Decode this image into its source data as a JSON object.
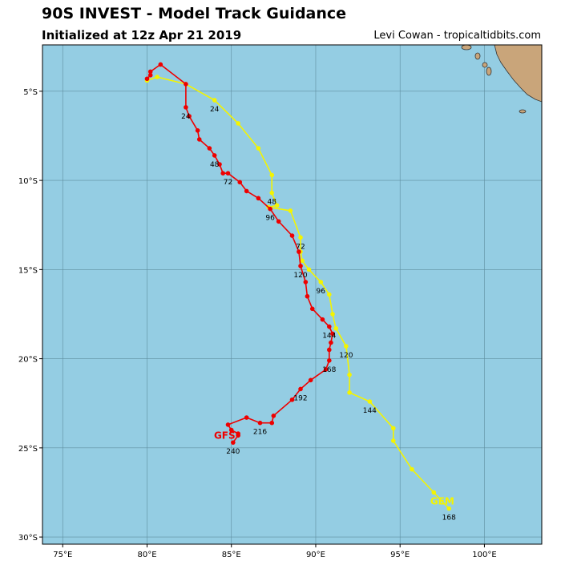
{
  "header": {
    "title": "90S INVEST - Model Track Guidance",
    "subtitle": "Initialized at 12z Apr 21 2019",
    "credit": "Levi Cowan - tropicaltidbits.com"
  },
  "colors": {
    "ocean": "#94cde3",
    "land": "#c9a57a",
    "grid": "#5f8ea0",
    "gfs": "#ee0000",
    "gem": "#f4f400"
  },
  "chart_data": {
    "type": "map-tracks",
    "lon_range": [
      73.8,
      103.4
    ],
    "lat_range": [
      -30.4,
      -2.4
    ],
    "x_ticks": [
      {
        "value": 75,
        "label": "75°E"
      },
      {
        "value": 80,
        "label": "80°E"
      },
      {
        "value": 85,
        "label": "85°E"
      },
      {
        "value": 90,
        "label": "90°E"
      },
      {
        "value": 95,
        "label": "95°E"
      },
      {
        "value": 100,
        "label": "100°E"
      }
    ],
    "y_ticks": [
      {
        "value": -5,
        "label": "5°S"
      },
      {
        "value": -10,
        "label": "10°S"
      },
      {
        "value": -15,
        "label": "15°S"
      },
      {
        "value": -20,
        "label": "20°S"
      },
      {
        "value": -25,
        "label": "25°S"
      },
      {
        "value": -30,
        "label": "30°S"
      }
    ],
    "grid": true,
    "series": [
      {
        "name": "GEM",
        "color": "#f4f400",
        "points": [
          [
            80.0,
            -4.4
          ],
          [
            80.6,
            -4.2
          ],
          [
            82.3,
            -4.6
          ],
          [
            84.0,
            -5.5
          ],
          [
            85.4,
            -6.8
          ],
          [
            86.6,
            -8.2
          ],
          [
            87.4,
            -9.7
          ],
          [
            87.4,
            -10.7
          ],
          [
            87.7,
            -11.4
          ],
          [
            87.2,
            -11.5
          ],
          [
            88.5,
            -11.7
          ],
          [
            89.1,
            -13.2
          ],
          [
            89.1,
            -14.0
          ],
          [
            89.2,
            -14.5
          ],
          [
            89.6,
            -15.0
          ],
          [
            90.3,
            -15.7
          ],
          [
            90.8,
            -16.4
          ],
          [
            91.0,
            -17.5
          ],
          [
            91.2,
            -18.3
          ],
          [
            91.8,
            -19.3
          ],
          [
            92.0,
            -20.9
          ],
          [
            92.0,
            -21.9
          ],
          [
            93.2,
            -22.4
          ],
          [
            94.6,
            -23.9
          ],
          [
            94.6,
            -24.6
          ],
          [
            95.7,
            -26.2
          ],
          [
            97.0,
            -27.5
          ],
          [
            97.9,
            -28.4
          ]
        ],
        "labels": [
          {
            "text": "24",
            "lon": 84.0,
            "lat": -5.5
          },
          {
            "text": "48",
            "lon": 87.4,
            "lat": -10.7
          },
          {
            "text": "72",
            "lon": 89.1,
            "lat": -13.2
          },
          {
            "text": "96",
            "lon": 90.3,
            "lat": -15.7
          },
          {
            "text": "120",
            "lon": 91.8,
            "lat": -19.3
          },
          {
            "text": "144",
            "lon": 93.2,
            "lat": -22.4
          },
          {
            "text": "168",
            "lon": 97.9,
            "lat": -28.4
          }
        ],
        "model_label": {
          "text": "GEM",
          "lon": 97.5,
          "lat": -28.0
        }
      },
      {
        "name": "GFS",
        "color": "#ee0000",
        "points": [
          [
            80.0,
            -4.3
          ],
          [
            80.2,
            -4.1
          ],
          [
            80.2,
            -3.9
          ],
          [
            80.8,
            -3.5
          ],
          [
            82.3,
            -4.6
          ],
          [
            82.3,
            -5.9
          ],
          [
            82.5,
            -6.4
          ],
          [
            83.0,
            -7.2
          ],
          [
            83.1,
            -7.7
          ],
          [
            83.7,
            -8.2
          ],
          [
            84.0,
            -8.6
          ],
          [
            84.3,
            -9.1
          ],
          [
            84.5,
            -9.6
          ],
          [
            84.8,
            -9.6
          ],
          [
            85.5,
            -10.1
          ],
          [
            85.9,
            -10.6
          ],
          [
            86.6,
            -11.0
          ],
          [
            87.3,
            -11.6
          ],
          [
            87.8,
            -12.3
          ],
          [
            88.6,
            -13.1
          ],
          [
            89.0,
            -14.0
          ],
          [
            89.1,
            -14.8
          ],
          [
            89.4,
            -15.7
          ],
          [
            89.5,
            -16.5
          ],
          [
            89.8,
            -17.2
          ],
          [
            90.4,
            -17.8
          ],
          [
            90.8,
            -18.2
          ],
          [
            91.0,
            -18.6
          ],
          [
            90.9,
            -19.1
          ],
          [
            90.8,
            -19.5
          ],
          [
            90.8,
            -20.1
          ],
          [
            90.6,
            -20.6
          ],
          [
            89.7,
            -21.2
          ],
          [
            89.1,
            -21.7
          ],
          [
            88.6,
            -22.3
          ],
          [
            87.5,
            -23.2
          ],
          [
            87.4,
            -23.6
          ],
          [
            86.7,
            -23.6
          ],
          [
            85.9,
            -23.3
          ],
          [
            84.8,
            -23.7
          ],
          [
            85.0,
            -24.0
          ],
          [
            85.4,
            -24.2
          ],
          [
            85.4,
            -24.3
          ],
          [
            85.1,
            -24.7
          ]
        ],
        "labels": [
          {
            "text": "24",
            "lon": 82.3,
            "lat": -5.9
          },
          {
            "text": "48",
            "lon": 84.0,
            "lat": -8.6
          },
          {
            "text": "72",
            "lon": 84.8,
            "lat": -9.6
          },
          {
            "text": "96",
            "lon": 87.3,
            "lat": -11.6
          },
          {
            "text": "120",
            "lon": 89.1,
            "lat": -14.8
          },
          {
            "text": "144",
            "lon": 90.8,
            "lat": -18.2
          },
          {
            "text": "168",
            "lon": 90.8,
            "lat": -20.1
          },
          {
            "text": "192",
            "lon": 89.1,
            "lat": -21.7
          },
          {
            "text": "216",
            "lon": 86.7,
            "lat": -23.6
          },
          {
            "text": "240",
            "lon": 85.1,
            "lat": -24.7
          }
        ],
        "model_label": {
          "text": "GFS",
          "lon": 84.6,
          "lat": -24.3
        }
      }
    ]
  }
}
